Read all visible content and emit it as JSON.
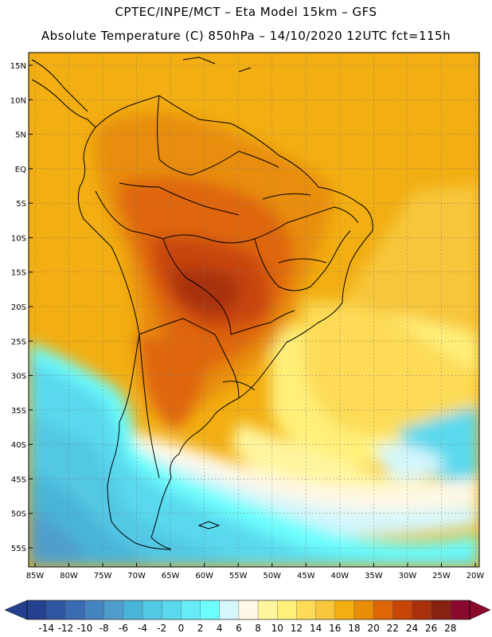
{
  "header": {
    "line1": "CPTEC/INPE/MCT –  Eta Model 15km – GFS",
    "line2": "Absolute Temperature (C) 850hPa – 14/10/2020 12UTC fct=115h"
  },
  "map": {
    "region": "South America",
    "lat_labels": [
      "15N",
      "10N",
      "5N",
      "EQ",
      "5S",
      "10S",
      "15S",
      "20S",
      "25S",
      "30S",
      "35S",
      "40S",
      "45S",
      "50S",
      "55S"
    ],
    "lon_labels": [
      "85W",
      "80W",
      "75W",
      "70W",
      "65W",
      "60W",
      "55W",
      "50W",
      "45W",
      "40W",
      "35W",
      "30W",
      "25W",
      "20W"
    ]
  },
  "colorbar": {
    "labels": [
      "-14",
      "-12",
      "-10",
      "-8",
      "-6",
      "-4",
      "-2",
      "0",
      "2",
      "4",
      "6",
      "8",
      "10",
      "12",
      "14",
      "16",
      "18",
      "20",
      "22",
      "24",
      "26",
      "28"
    ],
    "colors": [
      "#24408e",
      "#2f56a0",
      "#3a6cb2",
      "#4585bf",
      "#4f9dcc",
      "#4ab4d8",
      "#52c8e4",
      "#5ad9ee",
      "#66ecf8",
      "#6cfdfd",
      "#d4f6fc",
      "#fff8e6",
      "#fff59e",
      "#fff07a",
      "#fddb57",
      "#f7c63b",
      "#f2ae12",
      "#e88d08",
      "#df6607",
      "#c84508",
      "#a8310b",
      "#872110",
      "#8a0a2e"
    ]
  }
}
